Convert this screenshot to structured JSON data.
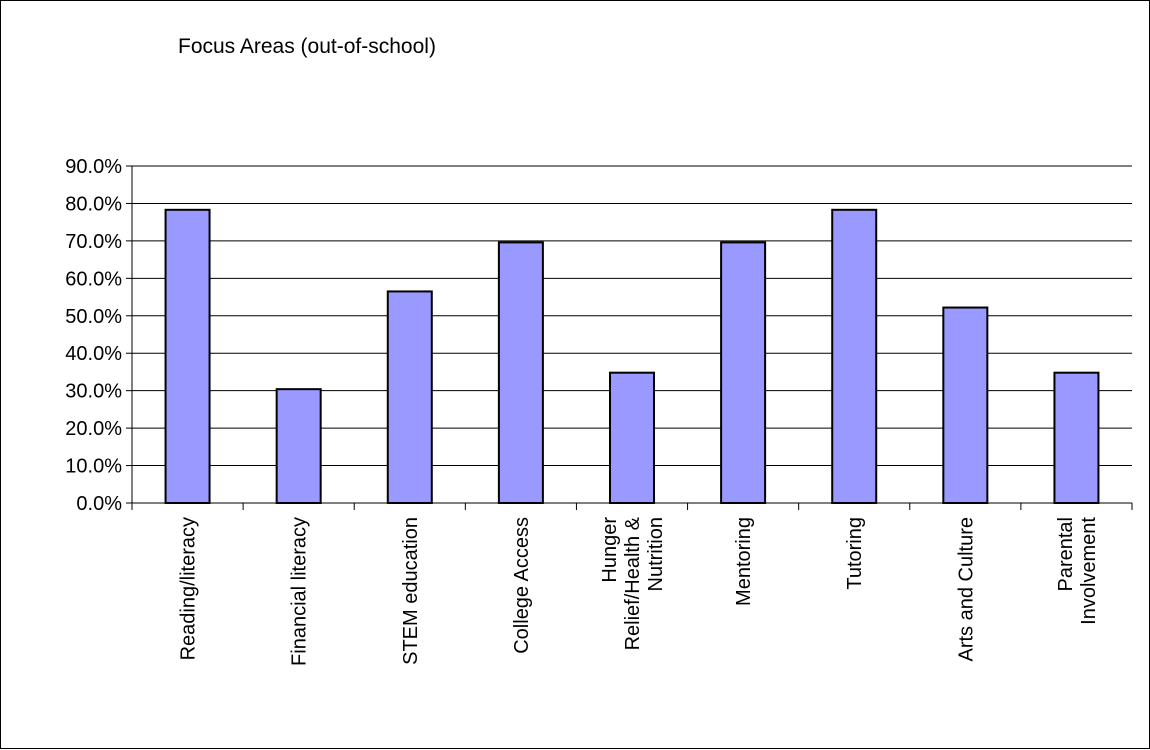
{
  "chart_data": {
    "type": "bar",
    "title": "Focus Areas (out-of-school)",
    "categories": [
      [
        "Reading/literacy"
      ],
      [
        "Financial literacy"
      ],
      [
        "STEM education"
      ],
      [
        "College Access"
      ],
      [
        "Hunger",
        "Relief/Health &",
        "Nutrition"
      ],
      [
        "Mentoring"
      ],
      [
        "Tutoring"
      ],
      [
        "Arts and Culture"
      ],
      [
        "Parental",
        "Involvement"
      ]
    ],
    "values": [
      78.3,
      30.4,
      56.5,
      69.6,
      34.8,
      69.6,
      78.3,
      52.2,
      34.8
    ],
    "ylim": [
      0,
      90
    ],
    "yticks": [
      "0.0%",
      "10.0%",
      "20.0%",
      "30.0%",
      "40.0%",
      "50.0%",
      "60.0%",
      "70.0%",
      "80.0%",
      "90.0%"
    ],
    "grid": true,
    "bar_color": "#9999ff",
    "bar_edge_color": "#000000"
  }
}
